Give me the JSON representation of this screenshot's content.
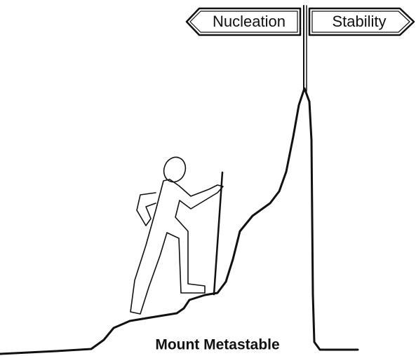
{
  "signs": {
    "left": "Nucleation",
    "right": "Stability"
  },
  "caption": "Mount Metastable"
}
